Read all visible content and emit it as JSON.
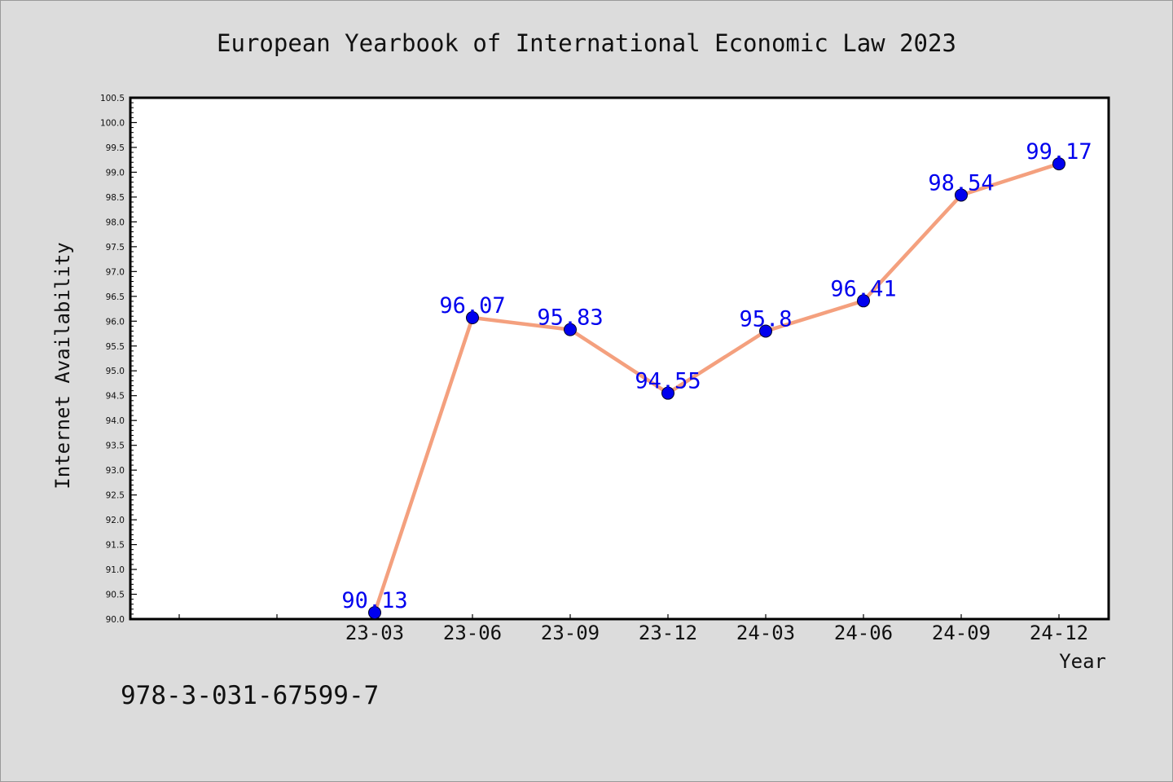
{
  "chart_data": {
    "type": "line",
    "title": "European Yearbook of International Economic Law 2023",
    "xlabel": "Year",
    "ylabel": "Internet Availability",
    "categories": [
      "",
      "",
      "23-03",
      "23-06",
      "23-09",
      "23-12",
      "24-03",
      "24-06",
      "24-09",
      "24-12"
    ],
    "series": [
      {
        "values": [
          null,
          null,
          90.13,
          96.07,
          95.83,
          94.55,
          95.8,
          96.41,
          98.54,
          99.17
        ],
        "labels": [
          "",
          "",
          "90.13",
          "96.07",
          "95.83",
          "94.55",
          "95.8",
          "96.41",
          "98.54",
          "99.17"
        ]
      }
    ],
    "ylim": [
      90.0,
      100.5
    ],
    "ystep": 0.5,
    "grid": false,
    "legend": "none",
    "colors": {
      "line": "#f4a07e",
      "marker": "#0000ee",
      "label": "#0000ee",
      "background": "#dcdcdc",
      "plot": "#ffffff"
    }
  },
  "footnote": "978-3-031-67599-7"
}
